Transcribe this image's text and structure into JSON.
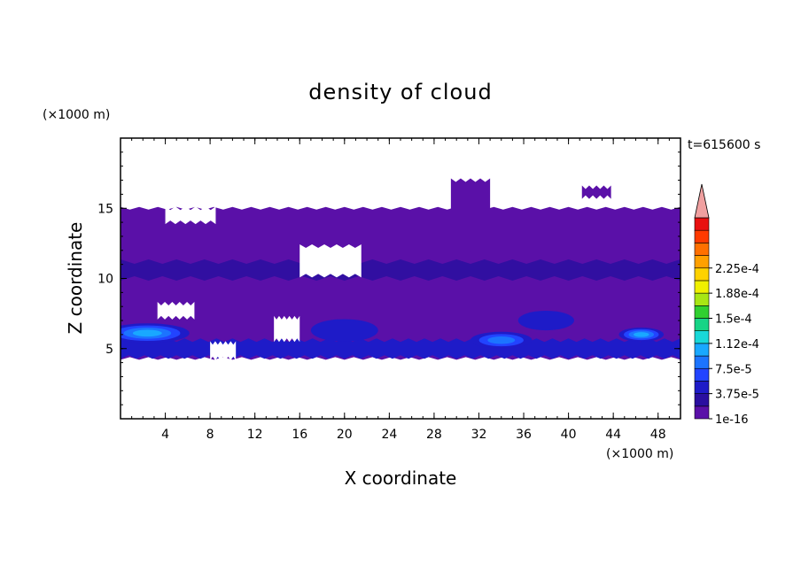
{
  "chart_data": {
    "type": "heatmap",
    "title": "density of cloud",
    "xlabel": "X coordinate",
    "ylabel": "Z coordinate",
    "x_unit": "(×1000 m)",
    "y_unit": "(×1000 m)",
    "time_label": "t=615600 s",
    "xlim": [
      0,
      50
    ],
    "ylim": [
      0,
      20
    ],
    "x_ticks": [
      4,
      8,
      12,
      16,
      20,
      24,
      28,
      32,
      36,
      40,
      44,
      48
    ],
    "y_ticks": [
      5,
      10,
      15
    ],
    "colorbar": {
      "levels": [
        "1e-16",
        "3.75e-5",
        "7.5e-5",
        "1.12e-4",
        "1.5e-4",
        "1.88e-4",
        "2.25e-4"
      ],
      "level_values": [
        1e-16,
        3.75e-05,
        7.5e-05,
        0.000112,
        0.00015,
        0.000188,
        0.000225
      ],
      "colors": [
        "#5a10a8",
        "#2a0fa0",
        "#1e1bc8",
        "#2244ff",
        "#1c74ff",
        "#19a8ff",
        "#18d8d8",
        "#16d486",
        "#30d030",
        "#a8e614",
        "#f0f000",
        "#ffd200",
        "#ffa000",
        "#ff7000",
        "#ff3a00",
        "#e81010"
      ],
      "extend_color": "#f0a0a0"
    },
    "regions": {
      "main_layer": {
        "x": [
          0,
          50
        ],
        "z": [
          4.3,
          15.0
        ],
        "level": 0,
        "holes": [
          {
            "x": [
              16.0,
              21.5
            ],
            "z": [
              10.2,
              12.3
            ]
          },
          {
            "x": [
              3.3,
              6.6
            ],
            "z": [
              7.2,
              8.2
            ]
          },
          {
            "x": [
              13.7,
              16.0
            ],
            "z": [
              5.6,
              7.2
            ]
          },
          {
            "x": [
              8.0,
              10.3
            ],
            "z": [
              4.3,
              5.4
            ]
          },
          {
            "x": [
              4.0,
              8.5
            ],
            "z": [
              14.0,
              15.0
            ]
          }
        ]
      },
      "upper_cells": [
        {
          "x": [
            29.5,
            33.0
          ],
          "z": [
            12.0,
            17.0
          ],
          "level": 0
        },
        {
          "x": [
            41.2,
            43.8
          ],
          "z": [
            15.8,
            16.5
          ],
          "level": 0
        }
      ],
      "dense_band": {
        "x": [
          0,
          50
        ],
        "z": [
          10.0,
          11.2
        ],
        "level": 1
      },
      "low_band": {
        "x": [
          0,
          50
        ],
        "z": [
          4.4,
          5.6
        ],
        "level": 2
      },
      "cores": [
        {
          "x": 2.4,
          "z": 6.1,
          "width": 7.5,
          "height": 1.4,
          "max_level": 5
        },
        {
          "x": 34.0,
          "z": 5.6,
          "width": 5.5,
          "height": 1.2,
          "max_level": 4
        },
        {
          "x": 46.5,
          "z": 6.0,
          "width": 4.0,
          "height": 1.0,
          "max_level": 5
        },
        {
          "x": 20.0,
          "z": 6.3,
          "width": 6.0,
          "height": 1.6,
          "max_level": 2
        },
        {
          "x": 38.0,
          "z": 7.0,
          "width": 5.0,
          "height": 1.4,
          "max_level": 2
        }
      ]
    }
  }
}
